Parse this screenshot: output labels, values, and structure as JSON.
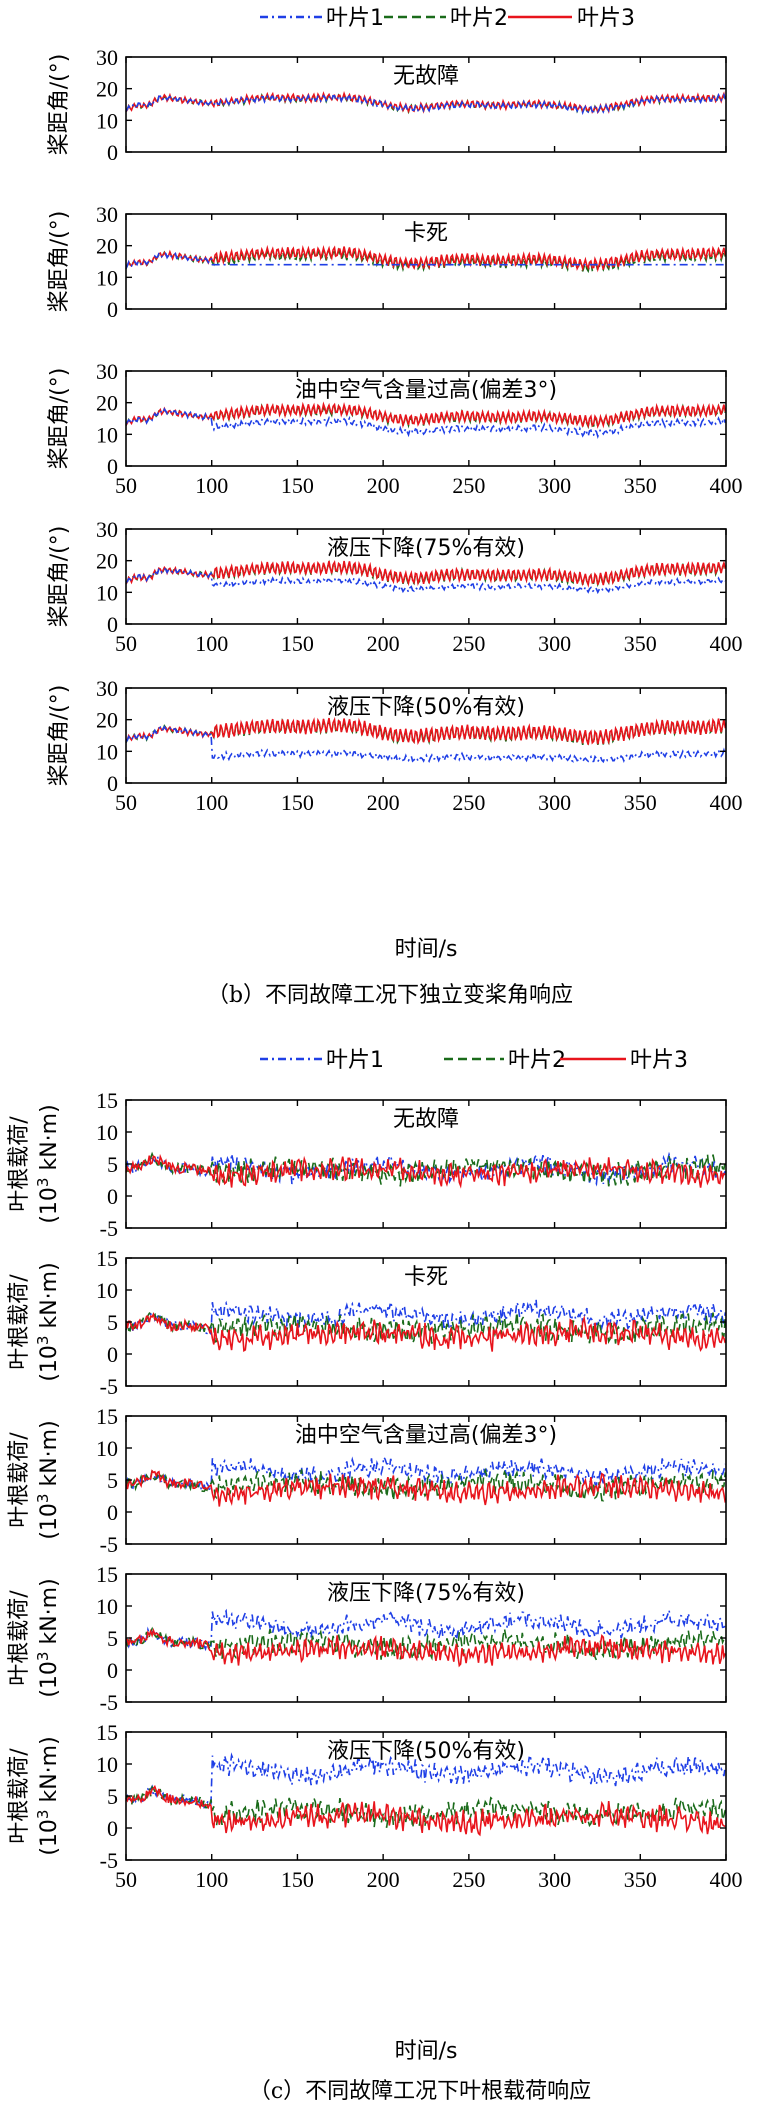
{
  "colors": {
    "blade1": "#1f3fe6",
    "blade2": "#1a6b1a",
    "blade3": "#e8141c",
    "axis": "#000000"
  },
  "chart_data": [
    {
      "id": "pitch",
      "type": "line",
      "caption": "（b）不同故障工况下独立变桨角响应",
      "legend": [
        "叶片1",
        "叶片2",
        "叶片3"
      ],
      "legend_placement": "top",
      "xlabel": "时间/s",
      "ylabel": "桨距角/(°)",
      "xlim": [
        50,
        400
      ],
      "ylim": [
        0,
        30
      ],
      "xticks": [
        50,
        100,
        150,
        200,
        250,
        300,
        350,
        400
      ],
      "yticks": [
        0,
        10,
        20,
        30
      ],
      "fault_time": 100,
      "panels": [
        {
          "title": "无故障",
          "baseline": 15.5,
          "blade1_after_fault": "follow",
          "spread_after": [
            0,
            0.4
          ],
          "amp_after": 1.0
        },
        {
          "title": "卡死",
          "baseline": 15.5,
          "blade1_after_fault": 14,
          "spread_after": [
            0,
            1.5
          ],
          "amp_after": 1.6
        },
        {
          "title": "油中空气含量过高(偏差3°)",
          "baseline": 15.5,
          "blade1_after_fault": "offset",
          "blade1_offset": -3,
          "spread_after": [
            1.0,
            1.5
          ],
          "amp_after": 1.6
        },
        {
          "title": "液压下降(75%有效)",
          "baseline": 15.5,
          "blade1_after_fault": "scale",
          "blade1_scale": 0.8,
          "spread_after": [
            1.0,
            1.5
          ],
          "amp_after": 1.8
        },
        {
          "title": "液压下降(50%有效)",
          "baseline": 15.5,
          "blade1_after_fault": "scale",
          "blade1_scale": 0.55,
          "spread_after": [
            1.5,
            2.0
          ],
          "amp_after": 2.2
        }
      ]
    },
    {
      "id": "load",
      "type": "line",
      "caption": "（c）不同故障工况下叶根载荷响应",
      "legend": [
        "叶片1",
        "叶片2",
        "叶片3"
      ],
      "legend_placement": "top",
      "xlabel": "时间/s",
      "ylabel_line1": "叶根载荷/",
      "ylabel_line2_pre": "(10",
      "ylabel_line2_sup": "3",
      "ylabel_line2_post": " kN·m)",
      "xlim": [
        50,
        400
      ],
      "ylim": [
        -5,
        15
      ],
      "xticks": [
        50,
        100,
        150,
        200,
        250,
        300,
        350,
        400
      ],
      "yticks": [
        -5,
        0,
        5,
        10,
        15
      ],
      "fault_time": 100,
      "panels": [
        {
          "title": "无故障",
          "b1_after": 4.2,
          "b2_after": 4.0,
          "b3_after": 3.8,
          "amp": 1.5
        },
        {
          "title": "卡死",
          "b1_after": 6.0,
          "b2_after": 4.0,
          "b3_after": 3.0,
          "amp": 1.6
        },
        {
          "title": "油中空气含量过高(偏差3°)",
          "b1_after": 6.3,
          "b2_after": 4.2,
          "b3_after": 3.5,
          "amp": 1.5
        },
        {
          "title": "液压下降(75%有效)",
          "b1_after": 7.0,
          "b2_after": 4.0,
          "b3_after": 3.0,
          "amp": 1.5
        },
        {
          "title": "液压下降(50%有效)",
          "b1_after": 9.0,
          "b2_after": 2.5,
          "b3_after": 1.5,
          "amp": 1.6
        }
      ]
    }
  ]
}
